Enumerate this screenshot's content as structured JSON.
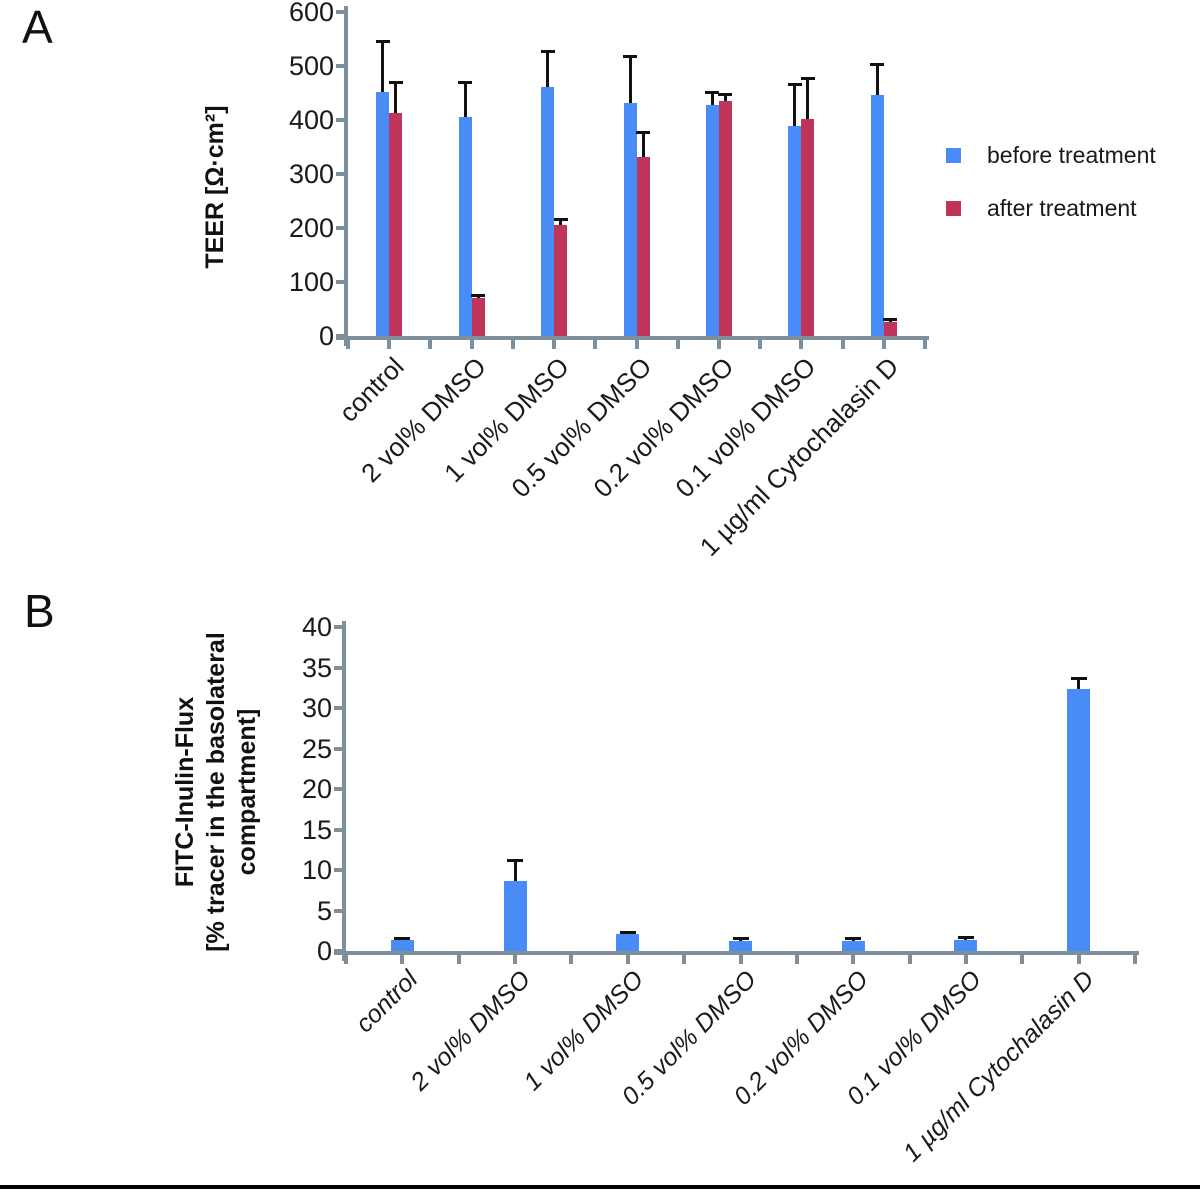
{
  "page": {
    "panel_a_label": "A",
    "panel_b_label": "B"
  },
  "colors": {
    "before_bar": "#4a8cf7",
    "after_bar": "#bf3459",
    "axis": "#7d8f9b",
    "error_bar": "#111111",
    "text": "#1a1a1a",
    "bottom_rule": "#000000"
  },
  "chart_data": [
    {
      "type": "bar",
      "panel": "A",
      "title": "",
      "ylabel": "TEER [Ω·cm²]",
      "xlabel": "",
      "ylim": [
        0,
        600
      ],
      "yticks": [
        0,
        100,
        200,
        300,
        400,
        500,
        600
      ],
      "grid": false,
      "legend_position": "right",
      "categories": [
        "control",
        "2 vol% DMSO",
        "1 vol% DMSO",
        "0.5 vol% DMSO",
        "0.2 vol% DMSO",
        "0.1 vol% DMSO",
        "1 µg/ml Cytochalasin D"
      ],
      "series": [
        {
          "name": "before treatment",
          "color": "#4a8cf7",
          "values": [
            452,
            405,
            462,
            431,
            427,
            389,
            446
          ],
          "errors_plus": [
            95,
            65,
            65,
            88,
            24,
            77,
            58
          ]
        },
        {
          "name": "after treatment",
          "color": "#bf3459",
          "values": [
            413,
            71,
            205,
            332,
            436,
            401,
            26
          ],
          "errors_plus": [
            57,
            5,
            11,
            45,
            13,
            76,
            5
          ]
        }
      ]
    },
    {
      "type": "bar",
      "panel": "B",
      "title": "",
      "ylabel": "FITC-Inulin-Flux [% tracer in the basolateral compartment]",
      "ylabel_lines": [
        "FITC-Inulin-Flux",
        "[% tracer in the basolateral",
        "compartment]"
      ],
      "xlabel": "",
      "ylim": [
        0,
        40
      ],
      "yticks": [
        0,
        5,
        10,
        15,
        20,
        25,
        30,
        35,
        40
      ],
      "grid": false,
      "legend_position": "none",
      "categories": [
        "control",
        "2 vol% DMSO",
        "1 vol% DMSO",
        "0.5 vol% DMSO",
        "0.2 vol% DMSO",
        "0.1 vol% DMSO",
        "1 µg/ml Cytochalasin D"
      ],
      "series": [
        {
          "name": "FITC-Inulin flux",
          "color": "#4a8cf7",
          "values": [
            1.3,
            8.6,
            2.1,
            1.2,
            1.2,
            1.4,
            32.4
          ],
          "errors_plus": [
            0.3,
            2.6,
            0.3,
            0.4,
            0.4,
            0.3,
            1.3
          ]
        }
      ]
    }
  ]
}
